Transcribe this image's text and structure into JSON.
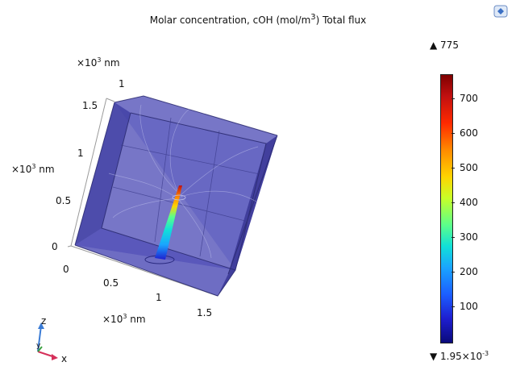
{
  "plot": {
    "title_main": "Molar concentration, cOH (mol/m",
    "title_sup": "3",
    "title_rest": ")  Total flux"
  },
  "axes": {
    "unit_prefix": "×10",
    "unit_exp": "3",
    "unit_suffix": " nm",
    "top_ticks": [
      "1",
      "1.5",
      "1",
      "0.5",
      "0"
    ],
    "bottom_ticks": [
      "0",
      "0.5",
      "1",
      "1.5"
    ],
    "triad": {
      "z": "z",
      "y": "y",
      "x": "x"
    }
  },
  "colorbar": {
    "max_marker": "▲ 775",
    "min_marker_prefix": "▼ 1.95×10",
    "min_marker_exp": "-3",
    "ticks": [
      "700",
      "600",
      "500",
      "400",
      "300",
      "200",
      "100"
    ],
    "colors": {
      "top": "#7f0000",
      "mid": "#c8ff28",
      "bottom": "#0a0a7a"
    }
  },
  "icons": {
    "corner": "graphics-window-icon"
  }
}
